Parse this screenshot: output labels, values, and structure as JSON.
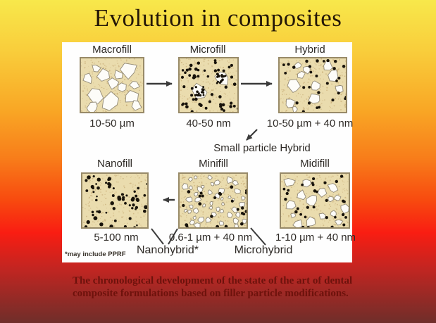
{
  "title": "Evolution in composites",
  "caption": "The chronological development of the state of the art of dental composite formulations based on filler particle modifications.",
  "panel": {
    "mid_label": "Small particle Hybrid",
    "nanohybrid_label": "Nanohybrid*",
    "microhybrid_label": "Microhybrid",
    "footnote": "*may include PPRF",
    "row1": [
      {
        "label": "Macrofill",
        "size": "10-50 µm"
      },
      {
        "label": "Microfill",
        "size": "40-50 nm"
      },
      {
        "label": "Hybrid",
        "size": "10-50 µm + 40 nm"
      }
    ],
    "row2": [
      {
        "label": "Nanofill",
        "size": "5-100 nm"
      },
      {
        "label": "Minifill",
        "size": "0.6-1 µm + 40 nm"
      },
      {
        "label": "Midifill",
        "size": "1-10 µm + 40 nm"
      }
    ]
  },
  "colors": {
    "background_top": "#f8e84b",
    "background_mid": "#f91d12",
    "background_bottom": "#6f2e2a",
    "panel": "#fefefe",
    "box_bg": "#eadcae",
    "box_border": "#988a68",
    "speckle": "#c9ae78",
    "dot": "#17120a",
    "polygon_fill": "#fdfcf8",
    "polygon_stroke": "#948c78",
    "connector": "#3b3b3b",
    "title_text": "#241707",
    "caption_text": "#6d120c"
  },
  "patterns": {
    "macrofill": {
      "seed": 11,
      "polygons": 13,
      "poly_r": [
        7,
        15
      ],
      "dots": 0,
      "dot_r": [
        2,
        2
      ],
      "clusters": 0
    },
    "microfill": {
      "seed": 27,
      "polygons": 0,
      "poly_r": [
        0,
        0
      ],
      "dots": 52,
      "dot_r": [
        1.7,
        2.4
      ],
      "clusters": 2
    },
    "hybrid": {
      "seed": 33,
      "polygons": 11,
      "poly_r": [
        4.5,
        12
      ],
      "dots": 30,
      "dot_r": [
        1.8,
        2.3
      ],
      "clusters": 0
    },
    "nanofill": {
      "seed": 44,
      "polygons": 0,
      "poly_r": [
        0,
        0
      ],
      "dots": 62,
      "dot_r": [
        1.2,
        2.9
      ],
      "clusters": 0
    },
    "minifill": {
      "seed": 55,
      "polygons": 46,
      "poly_r": [
        2.5,
        5.5
      ],
      "dots": 26,
      "dot_r": [
        1.9,
        2.4
      ],
      "clusters": 0
    },
    "midifill": {
      "seed": 61,
      "polygons": 16,
      "poly_r": [
        4,
        9.5
      ],
      "dots": 30,
      "dot_r": [
        1.8,
        2.3
      ],
      "clusters": 0
    }
  }
}
